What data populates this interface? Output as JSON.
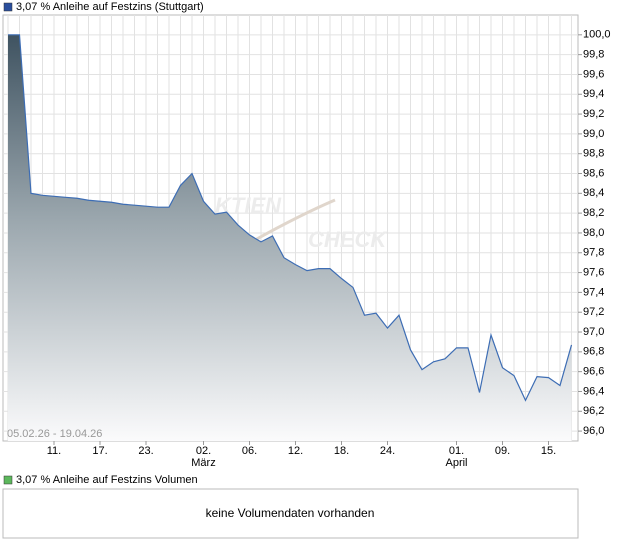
{
  "chart_data": {
    "type": "area",
    "title": "3,07 % Anleihe auf Festzins (Stuttgart)",
    "legend_color": "#2a4e9c",
    "date_range": "05.02.26 - 19.04.26",
    "watermark": [
      "KTIEN",
      "CHECK"
    ],
    "categories": [
      null,
      null,
      null,
      null,
      "11.",
      null,
      null,
      null,
      "17.",
      null,
      null,
      null,
      "23.",
      null,
      null,
      null,
      null,
      "02.",
      null,
      null,
      null,
      "06.",
      null,
      null,
      null,
      "12.",
      null,
      null,
      null,
      "18.",
      null,
      null,
      null,
      "24.",
      null,
      null,
      null,
      null,
      null,
      "01.",
      null,
      null,
      null,
      "09.",
      null,
      null,
      null,
      "15.",
      null,
      null
    ],
    "category_months": [
      null,
      null,
      null,
      null,
      null,
      null,
      null,
      null,
      null,
      null,
      null,
      null,
      null,
      null,
      null,
      null,
      null,
      "März",
      null,
      null,
      null,
      null,
      null,
      null,
      null,
      null,
      null,
      null,
      null,
      null,
      null,
      null,
      null,
      null,
      null,
      null,
      null,
      null,
      null,
      "April",
      null,
      null,
      null,
      null,
      null,
      null,
      null,
      null,
      null,
      null
    ],
    "series": [
      {
        "name": "3,07 % Anleihe auf Festzins (Stuttgart)",
        "color": "#3d6db4",
        "values": [
          100.0,
          100.0,
          98.4,
          98.38,
          98.37,
          98.36,
          98.35,
          98.33,
          98.32,
          98.31,
          98.29,
          98.28,
          98.27,
          98.26,
          98.26,
          98.48,
          98.6,
          98.32,
          98.19,
          98.21,
          98.08,
          97.98,
          97.91,
          97.97,
          97.75,
          97.68,
          97.62,
          97.64,
          97.64,
          97.54,
          97.45,
          97.17,
          97.19,
          97.04,
          97.17,
          96.82,
          96.62,
          96.7,
          96.73,
          96.84,
          96.84,
          96.39,
          96.97,
          96.64,
          96.56,
          96.31,
          96.55,
          96.54,
          96.46,
          96.87
        ]
      }
    ],
    "ylim": [
      95.9,
      100.2
    ],
    "yticks": [
      {
        "value": 100.0,
        "label": "100,0"
      },
      {
        "value": 99.8,
        "label": "99,8"
      },
      {
        "value": 99.6,
        "label": "99,6"
      },
      {
        "value": 99.4,
        "label": "99,4"
      },
      {
        "value": 99.2,
        "label": "99,2"
      },
      {
        "value": 99.0,
        "label": "99,0"
      },
      {
        "value": 98.8,
        "label": "98,8"
      },
      {
        "value": 98.6,
        "label": "98,6"
      },
      {
        "value": 98.4,
        "label": "98,4"
      },
      {
        "value": 98.2,
        "label": "98,2"
      },
      {
        "value": 98.0,
        "label": "98,0"
      },
      {
        "value": 97.8,
        "label": "97,8"
      },
      {
        "value": 97.6,
        "label": "97,6"
      },
      {
        "value": 97.4,
        "label": "97,4"
      },
      {
        "value": 97.2,
        "label": "97,2"
      },
      {
        "value": 97.0,
        "label": "97,0"
      },
      {
        "value": 96.8,
        "label": "96,8"
      },
      {
        "value": 96.6,
        "label": "96,6"
      },
      {
        "value": 96.4,
        "label": "96,4"
      },
      {
        "value": 96.2,
        "label": "96,2"
      },
      {
        "value": 96.0,
        "label": "96,0"
      }
    ],
    "grid": true,
    "volume": {
      "title": "3,07 % Anleihe auf Festzins Volumen",
      "color": "#5cb85c",
      "message": "keine Volumendaten vorhanden"
    }
  }
}
